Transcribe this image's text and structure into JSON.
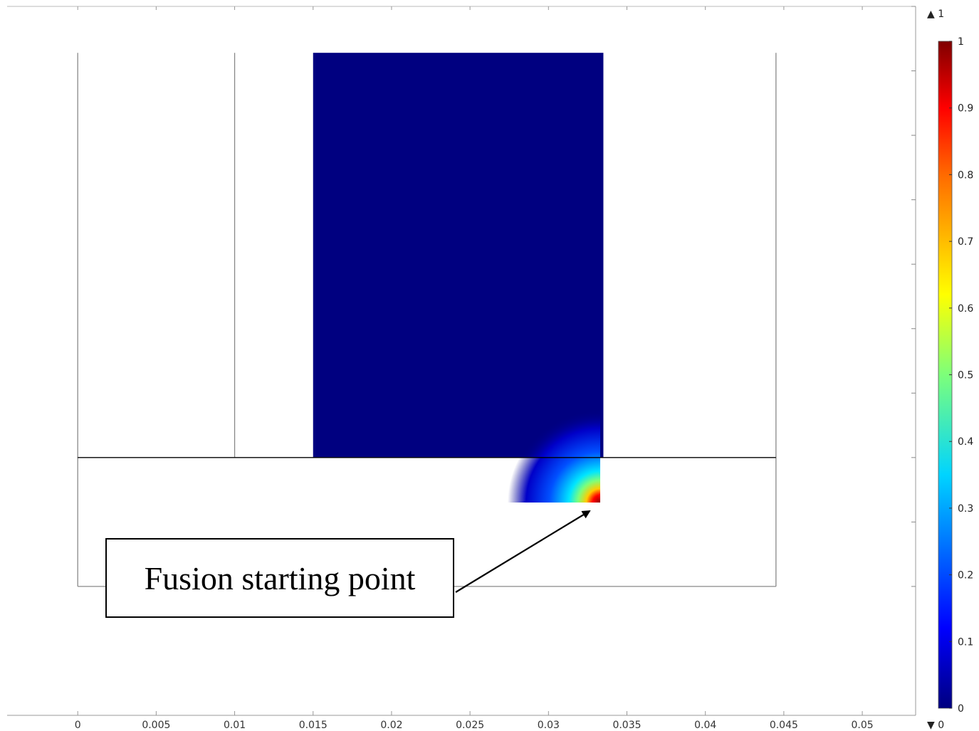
{
  "chart_data": {
    "type": "heatmap",
    "title": "",
    "xlabel": "",
    "ylabel": "",
    "x_ticks": [
      "0",
      "0.005",
      "0.01",
      "0.015",
      "0.02",
      "0.025",
      "0.03",
      "0.035",
      "0.04",
      "0.045",
      "0.05"
    ],
    "x_tick_values": [
      0,
      0.005,
      0.01,
      0.015,
      0.02,
      0.025,
      0.03,
      0.035,
      0.04,
      0.045,
      0.05
    ],
    "xlim": [
      -0.0045,
      0.0534
    ],
    "ylim": [
      -0.01,
      0.045
    ],
    "geometry": {
      "outer_domain": {
        "x": [
          0,
          0.0445
        ],
        "y": [
          0,
          0.0414
        ]
      },
      "base_line_y": 0.01,
      "inner_divider_x": 0.01,
      "filled_block": {
        "x": [
          0.015,
          0.0335
        ],
        "y": [
          0.01,
          0.0414
        ]
      }
    },
    "field": {
      "background_value": 0,
      "hotspot": {
        "x": 0.0335,
        "y": 0.01,
        "max_value": 1
      }
    },
    "colorbar": {
      "min": 0,
      "max": 1,
      "max_marker": "▲ 1",
      "min_marker": "▼ 0",
      "tick_labels": [
        "0",
        "0.1",
        "0.2",
        "0.3",
        "0.4",
        "0.5",
        "0.6",
        "0.7",
        "0.8",
        "0.9",
        "1"
      ],
      "tick_values": [
        0,
        0.1,
        0.2,
        0.3,
        0.4,
        0.5,
        0.6,
        0.7,
        0.8,
        0.9,
        1
      ],
      "colormap": "rainbow"
    },
    "annotation": {
      "text": "Fusion starting point",
      "points_to": [
        0.0328,
        0.0105
      ]
    }
  },
  "colors": {
    "block_fill": "#000080",
    "frame": "#888888",
    "base_line": "#000000",
    "axis": "#999999"
  }
}
